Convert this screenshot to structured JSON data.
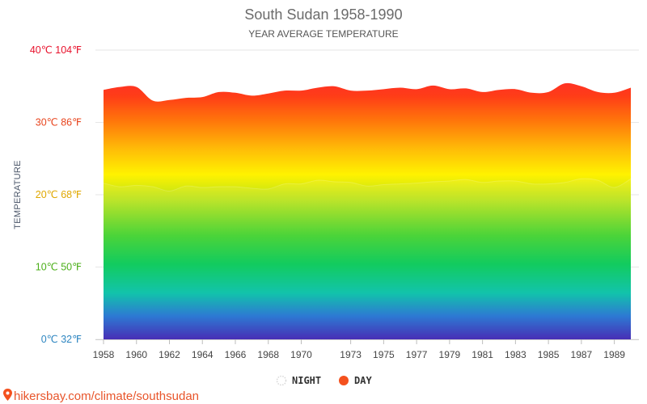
{
  "chart_data": {
    "type": "area",
    "title": "South Sudan 1958-1990",
    "subtitle": "YEAR AVERAGE TEMPERATURE",
    "ylabel": "TEMPERATURE",
    "ylim": [
      0,
      40
    ],
    "y_ticks": [
      {
        "value": 0,
        "label": "0℃ 32℉",
        "color": "#2e86c1"
      },
      {
        "value": 10,
        "label": "10℃ 50℉",
        "color": "#4caf1a"
      },
      {
        "value": 20,
        "label": "20℃ 68℉",
        "color": "#e0a800"
      },
      {
        "value": 30,
        "label": "30℃ 86℉",
        "color": "#e8451e"
      },
      {
        "value": 40,
        "label": "40℃ 104℉",
        "color": "#e8122c"
      }
    ],
    "x": [
      1958,
      1959,
      1960,
      1961,
      1962,
      1963,
      1964,
      1965,
      1966,
      1967,
      1968,
      1969,
      1970,
      1971,
      1972,
      1973,
      1974,
      1975,
      1976,
      1977,
      1978,
      1979,
      1980,
      1981,
      1982,
      1983,
      1984,
      1985,
      1986,
      1987,
      1988,
      1989,
      1990
    ],
    "x_ticks": [
      1958,
      1960,
      1962,
      1964,
      1966,
      1968,
      1970,
      1973,
      1975,
      1977,
      1979,
      1981,
      1983,
      1985,
      1987,
      1989
    ],
    "series": [
      {
        "name": "NIGHT",
        "color": "#e0e0e0",
        "values": [
          21.6,
          21.1,
          21.3,
          21.1,
          20.5,
          21.2,
          21.0,
          21.1,
          21.1,
          20.9,
          20.8,
          21.5,
          21.5,
          22.0,
          21.8,
          21.7,
          21.2,
          21.4,
          21.5,
          21.6,
          21.8,
          21.9,
          22.1,
          21.7,
          21.9,
          21.9,
          21.5,
          21.5,
          21.7,
          22.2,
          22.0,
          21.0,
          22.2
        ]
      },
      {
        "name": "DAY",
        "color": "#f4511e",
        "values": [
          34.5,
          34.9,
          34.9,
          33.0,
          33.1,
          33.4,
          33.5,
          34.2,
          34.1,
          33.7,
          34.0,
          34.4,
          34.4,
          34.8,
          35.0,
          34.4,
          34.4,
          34.6,
          34.8,
          34.6,
          35.1,
          34.6,
          34.7,
          34.2,
          34.5,
          34.6,
          34.1,
          34.2,
          35.4,
          35.0,
          34.2,
          34.1,
          34.8
        ]
      }
    ],
    "legend": {
      "position": "bottom",
      "entries": [
        "NIGHT",
        "DAY"
      ]
    },
    "grid": true
  },
  "source": {
    "text": "hikersbay.com/climate/southsudan"
  }
}
